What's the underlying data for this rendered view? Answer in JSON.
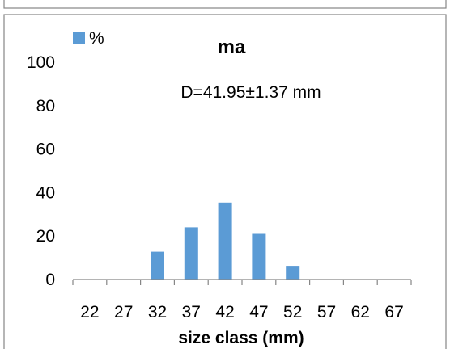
{
  "chart_data": {
    "type": "bar",
    "title": "ma",
    "annotation": "D=41.95±1.37 mm",
    "xlabel": "size class (mm)",
    "ylabel": "",
    "categories": [
      "22",
      "27",
      "32",
      "37",
      "42",
      "47",
      "52",
      "57",
      "62",
      "67"
    ],
    "series": [
      {
        "name": "%",
        "values": [
          0,
          0,
          12.8,
          24.0,
          35.4,
          21.0,
          6.3,
          0,
          0,
          0
        ]
      }
    ],
    "ylim": [
      0,
      100
    ],
    "yticks": [
      "0",
      "20",
      "40",
      "60",
      "80",
      "100"
    ],
    "grid": false,
    "legend_position": "top-left",
    "colors": {
      "bar": "#5B9BD5",
      "axis": "#868686",
      "text": "#000000",
      "frame": "#868686"
    }
  }
}
